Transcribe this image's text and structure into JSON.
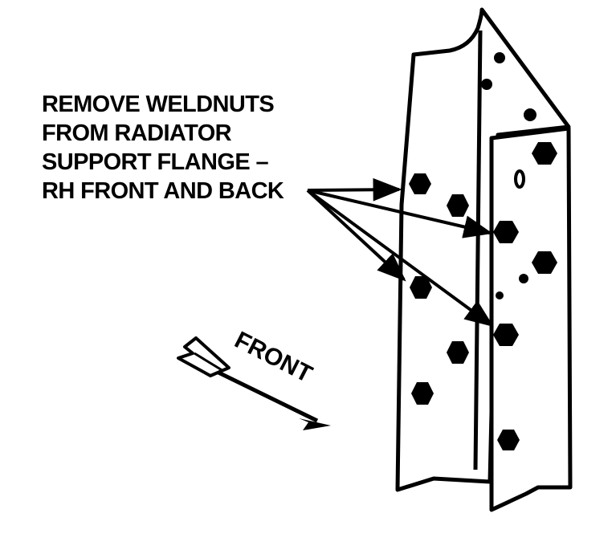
{
  "callout": {
    "lines": [
      "REMOVE WELDNUTS",
      "FROM RADIATOR",
      "SUPPORT FLANGE –",
      "RH FRONT AND BACK"
    ]
  },
  "direction_label": "FRONT",
  "colors": {
    "ink": "#000000",
    "paper": "#ffffff"
  }
}
